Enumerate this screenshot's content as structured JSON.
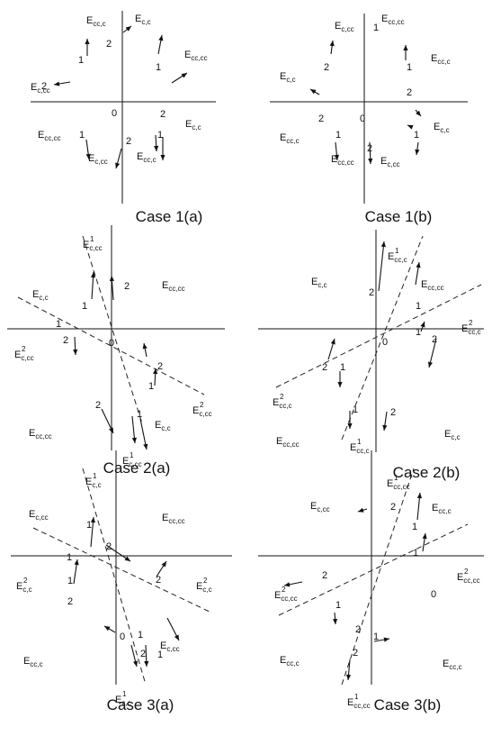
{
  "panels": [
    {
      "caption": "Case 1(a)",
      "labels": [
        {
          "base": "E",
          "sub": "c,c",
          "sup": ""
        },
        {
          "base": "E",
          "sub": "cc,c",
          "sup": ""
        },
        {
          "base": "E",
          "sub": "c,cc",
          "sup": ""
        },
        {
          "base": "E",
          "sub": "cc,cc",
          "sup": ""
        },
        {
          "base": "E",
          "sub": "cc,cc",
          "sup": ""
        },
        {
          "base": "E",
          "sub": "c,cc",
          "sup": ""
        },
        {
          "base": "E",
          "sub": "cc,c",
          "sup": ""
        },
        {
          "base": "E",
          "sub": "c,c",
          "sup": ""
        }
      ],
      "numbers": [
        "1",
        "2",
        "1",
        "2",
        "2",
        "0",
        "1",
        "2",
        "1"
      ]
    },
    {
      "caption": "Case 1(b)",
      "labels": [
        {
          "base": "E",
          "sub": "c,cc",
          "sup": ""
        },
        {
          "base": "E",
          "sub": "cc,cc",
          "sup": ""
        },
        {
          "base": "E",
          "sub": "c,c",
          "sup": ""
        },
        {
          "base": "E",
          "sub": "cc,c",
          "sup": ""
        },
        {
          "base": "E",
          "sub": "cc,c",
          "sup": ""
        },
        {
          "base": "E",
          "sub": "c,c",
          "sup": ""
        },
        {
          "base": "E",
          "sub": "cc,cc",
          "sup": ""
        },
        {
          "base": "E",
          "sub": "c,cc",
          "sup": ""
        }
      ],
      "numbers": [
        "2",
        "1",
        "1",
        "2",
        "2",
        "0",
        "1",
        "2",
        "1"
      ]
    },
    {
      "caption": "Case 2(a)",
      "labels": [
        {
          "base": "E",
          "sub": "c,cc",
          "sup": "1"
        },
        {
          "base": "E",
          "sub": "cc,cc",
          "sup": ""
        },
        {
          "base": "E",
          "sub": "c,c",
          "sup": ""
        },
        {
          "base": "E",
          "sub": "c,cc",
          "sup": "2"
        },
        {
          "base": "E",
          "sub": "c,cc",
          "sup": "2"
        },
        {
          "base": "E",
          "sub": "cc,cc",
          "sup": ""
        },
        {
          "base": "E",
          "sub": "c,c",
          "sup": ""
        },
        {
          "base": "E",
          "sub": "c,cc",
          "sup": "1"
        }
      ],
      "numbers": [
        "2",
        "1",
        "1",
        "2",
        "0",
        "2",
        "1",
        "2",
        "1"
      ]
    },
    {
      "caption": "Case 2(b)",
      "labels": [
        {
          "base": "E",
          "sub": "cc,c",
          "sup": "1"
        },
        {
          "base": "E",
          "sub": "c,c",
          "sup": ""
        },
        {
          "base": "E",
          "sub": "cc,cc",
          "sup": ""
        },
        {
          "base": "E",
          "sub": "cc,c",
          "sup": "2"
        },
        {
          "base": "E",
          "sub": "cc,c",
          "sup": "2"
        },
        {
          "base": "E",
          "sub": "cc,cc",
          "sup": ""
        },
        {
          "base": "E",
          "sub": "cc,c",
          "sup": "1"
        },
        {
          "base": "E",
          "sub": "c,c",
          "sup": ""
        }
      ],
      "numbers": [
        "2",
        "1",
        "1",
        "2",
        "2",
        "1",
        "0",
        "1",
        "2"
      ]
    },
    {
      "caption": "Case 3(a)",
      "labels": [
        {
          "base": "E",
          "sub": "c,c",
          "sup": "1"
        },
        {
          "base": "E",
          "sub": "c,cc",
          "sup": ""
        },
        {
          "base": "E",
          "sub": "cc,cc",
          "sup": ""
        },
        {
          "base": "E",
          "sub": "c,c",
          "sup": "2"
        },
        {
          "base": "E",
          "sub": "c,c",
          "sup": "2"
        },
        {
          "base": "E",
          "sub": "cc,c",
          "sup": ""
        },
        {
          "base": "E",
          "sub": "c,cc",
          "sup": ""
        },
        {
          "base": "E",
          "sub": "c,c",
          "sup": "1"
        }
      ],
      "numbers": [
        "1",
        "2",
        "1",
        "1",
        "2",
        "2",
        "0",
        "1",
        "2",
        "1"
      ]
    },
    {
      "caption": "Case 3(b)",
      "labels": [
        {
          "base": "E",
          "sub": "cc,cc",
          "sup": "1"
        },
        {
          "base": "E",
          "sub": "c,cc",
          "sup": ""
        },
        {
          "base": "E",
          "sub": "cc,c",
          "sup": ""
        },
        {
          "base": "E",
          "sub": "cc,cc",
          "sup": "2"
        },
        {
          "base": "E",
          "sub": "cc,cc",
          "sup": "2"
        },
        {
          "base": "E",
          "sub": "cc,c",
          "sup": ""
        },
        {
          "base": "E",
          "sub": "cc,cc",
          "sup": "1"
        },
        {
          "base": "E",
          "sub": "cc,c",
          "sup": ""
        }
      ],
      "numbers": [
        "2",
        "1",
        "1",
        "2",
        "0",
        "1",
        "2",
        "1",
        "2"
      ]
    }
  ]
}
